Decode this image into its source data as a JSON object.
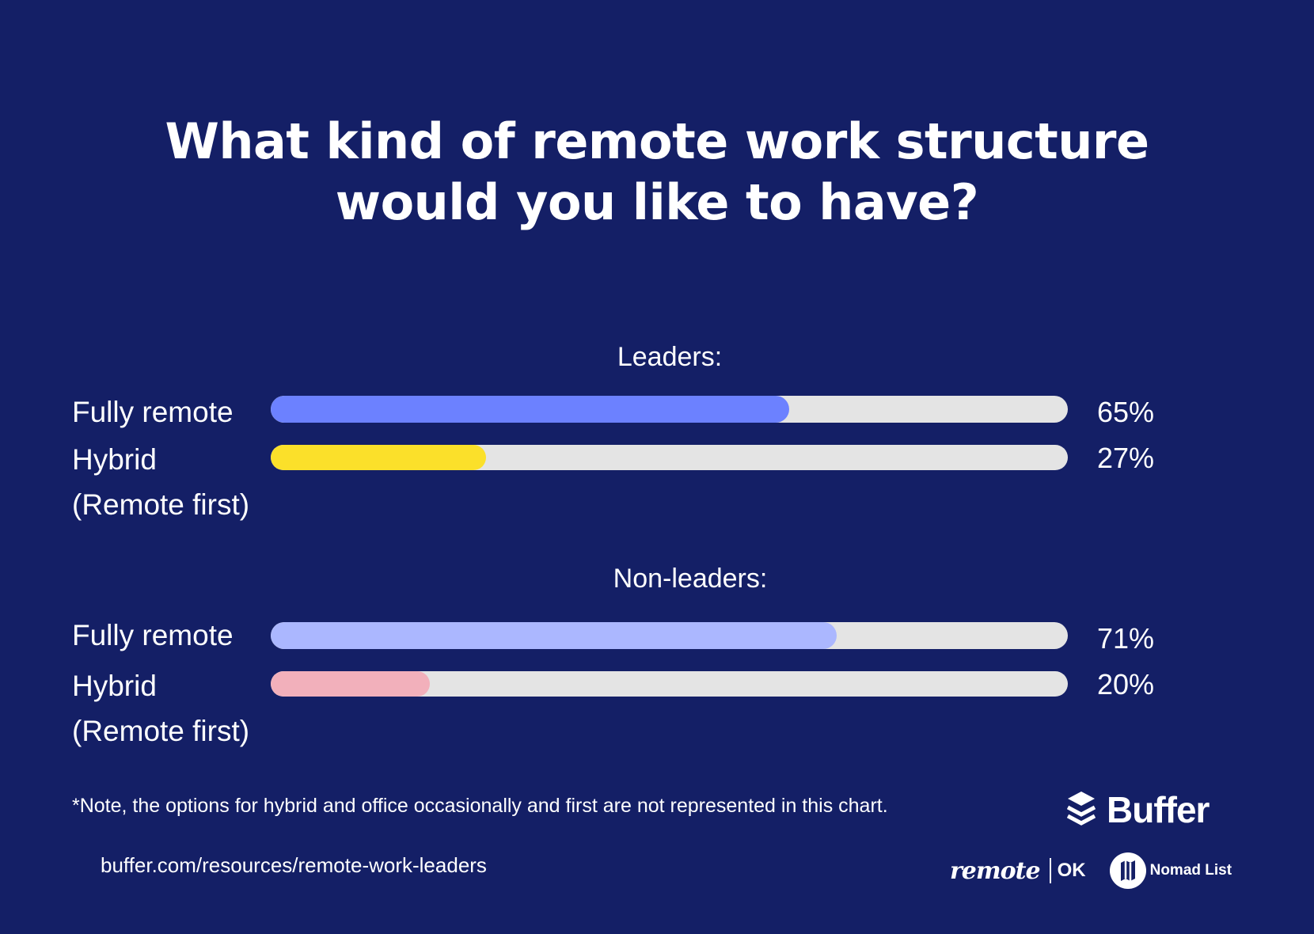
{
  "title": {
    "line1": "What kind of remote work structure",
    "line2": "would you like to have?"
  },
  "groups": [
    {
      "label": "Leaders:",
      "rows": [
        {
          "label_line1": "Fully remote",
          "label_line2": "",
          "value": 65,
          "display": "65%",
          "color": "#6c81ff"
        },
        {
          "label_line1": "Hybrid",
          "label_line2": "(Remote first)",
          "value": 27,
          "display": "27%",
          "color": "#fbe02a"
        }
      ]
    },
    {
      "label": "Non-leaders:",
      "rows": [
        {
          "label_line1": "Fully remote",
          "label_line2": "",
          "value": 71,
          "display": "71%",
          "color": "#abb7ff"
        },
        {
          "label_line1": "Hybrid",
          "label_line2": "(Remote first)",
          "value": 20,
          "display": "20%",
          "color": "#f2b0bb"
        }
      ]
    }
  ],
  "footer": {
    "note": "*Note, the options for hybrid and office occasionally and first are not represented in this chart.",
    "url": "buffer.com/resources/remote-work-leaders"
  },
  "logos": {
    "buffer": "Buffer",
    "remote": "remote",
    "ok": "OK",
    "nomad": "Nomad List"
  },
  "colors": {
    "background": "#141f66",
    "track": "#e4e4e4",
    "text": "#ffffff"
  },
  "chart_data": {
    "type": "bar",
    "orientation": "horizontal",
    "title": "What kind of remote work structure would you like to have?",
    "categories": [
      "Fully remote",
      "Hybrid (Remote first)"
    ],
    "series": [
      {
        "name": "Leaders",
        "values": [
          65,
          27
        ]
      },
      {
        "name": "Non-leaders",
        "values": [
          71,
          20
        ]
      }
    ],
    "unit": "%",
    "xlim": [
      0,
      100
    ],
    "grid": false,
    "legend": "none (group headings above each pair of bars)",
    "annotation": "*Note, the options for hybrid and office occasionally and first are not represented in this chart."
  }
}
